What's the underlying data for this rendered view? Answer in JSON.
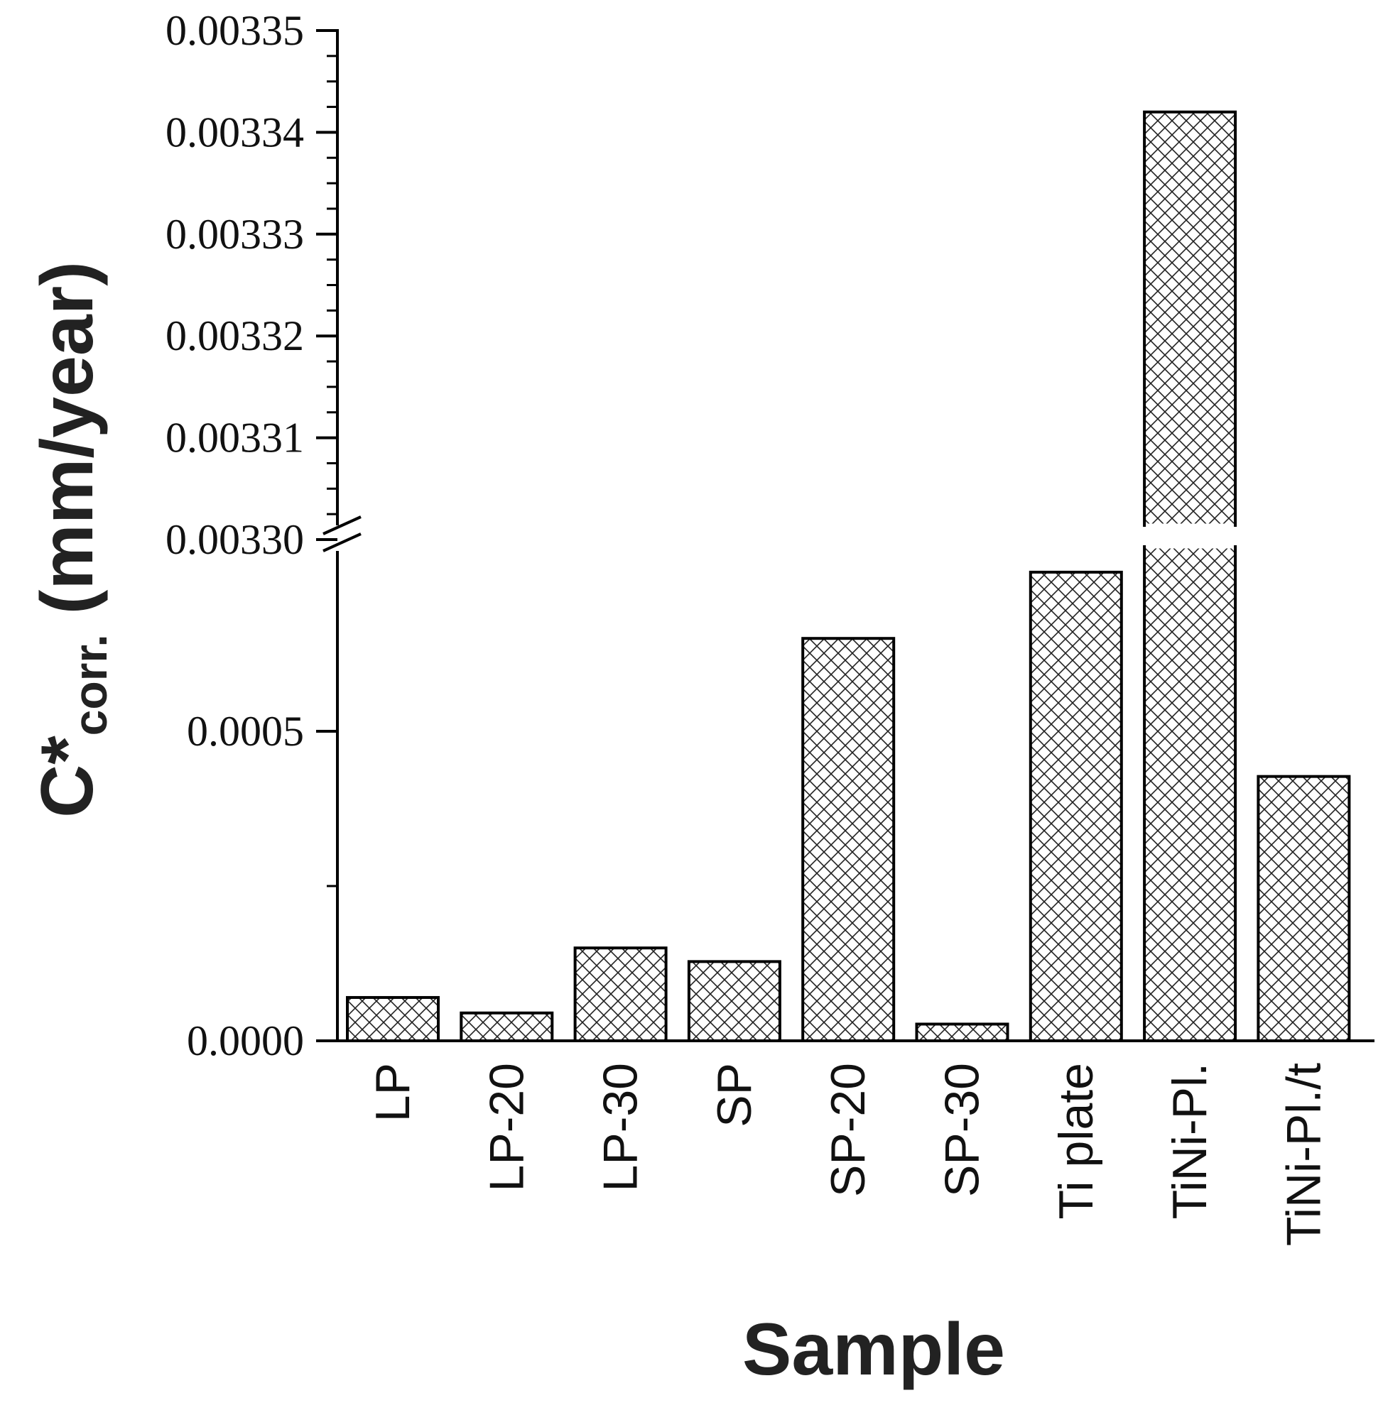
{
  "chart_data": {
    "type": "bar",
    "title": "",
    "xlabel": "Sample",
    "ylabel": {
      "main": "C*",
      "subscript": "corr.",
      "unit": "(mm/year)"
    },
    "categories": [
      "LP",
      "LP-20",
      "LP-30",
      "SP",
      "SP-20",
      "SP-30",
      "Ti plate",
      "TiNi-Pl.",
      "TiNi-Pl./t"
    ],
    "values": [
      7e-05,
      4.5e-05,
      0.00015,
      0.000128,
      0.00065,
      2.7e-05,
      0.000757,
      0.003342,
      0.000427
    ],
    "pattern": "crosshatch",
    "axis_break": {
      "lower_range": [
        0,
        0.00078
      ],
      "upper_range": [
        0.0033,
        0.00335
      ]
    },
    "lower_ticks": [
      {
        "value": 0,
        "label": "0.0000"
      },
      {
        "value": 0.0005,
        "label": "0.0005"
      }
    ],
    "lower_minor_ticks": [
      0.00025
    ],
    "upper_ticks": [
      {
        "value": 0.0033,
        "label": "0.00330"
      },
      {
        "value": 0.00331,
        "label": "0.00331"
      },
      {
        "value": 0.00332,
        "label": "0.00332"
      },
      {
        "value": 0.00333,
        "label": "0.00333"
      },
      {
        "value": 0.00334,
        "label": "0.00334"
      },
      {
        "value": 0.00335,
        "label": "0.00335"
      }
    ],
    "upper_minor_step": 2.5e-06,
    "grid": false,
    "legend": "none"
  }
}
